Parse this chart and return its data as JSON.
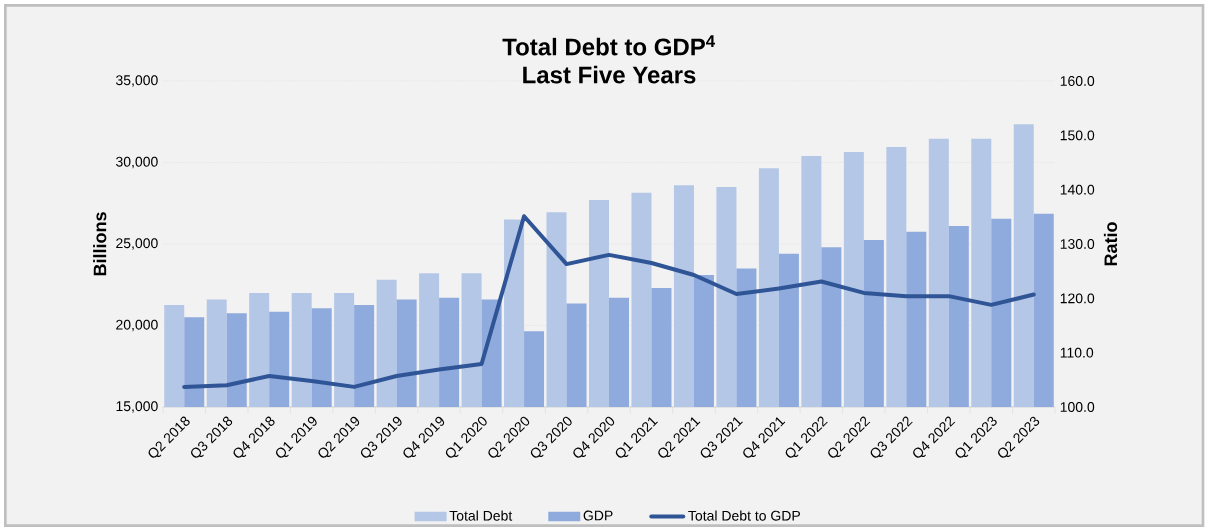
{
  "chart_data": {
    "type": "bar",
    "title": "Total Debt to GDP$^{4}$",
    "subtitle": "Last Five Years",
    "ylabel": "Billions",
    "y2label": "Ratio",
    "categories": [
      "Q2 2018",
      "Q3 2018",
      "Q4 2018",
      "Q1 2019",
      "Q2 2019",
      "Q3 2019",
      "Q4 2019",
      "Q1 2020",
      "Q2 2020",
      "Q3 2020",
      "Q4 2020",
      "Q1 2021",
      "Q2 2021",
      "Q3 2021",
      "Q4 2021",
      "Q1 2022",
      "Q2 2022",
      "Q3 2022",
      "Q4 2022",
      "Q1 2023",
      "Q2 2023"
    ],
    "series": [
      {
        "name": "Total Debt",
        "color": "#b4c7e7",
        "values": [
          21250,
          21600,
          22000,
          22000,
          22000,
          22800,
          23200,
          23200,
          26500,
          26950,
          27700,
          28150,
          28600,
          28500,
          29650,
          30400,
          30650,
          30950,
          31450,
          31450,
          32350
        ]
      },
      {
        "name": "GDP",
        "color": "#8faadc",
        "values": [
          20500,
          20750,
          20850,
          21050,
          21250,
          21600,
          21700,
          21600,
          19650,
          21350,
          21700,
          22300,
          23100,
          23500,
          24400,
          24800,
          25250,
          25750,
          26100,
          26550,
          26850
        ]
      },
      {
        "name": "Total Debt to GDP",
        "type": "line",
        "axis": "y2",
        "color": "#2f5597",
        "values": [
          103.7,
          104.0,
          105.7,
          104.8,
          103.7,
          105.7,
          106.9,
          107.9,
          135.1,
          126.3,
          128.0,
          126.5,
          124.3,
          120.8,
          121.8,
          123.1,
          121.0,
          120.4,
          120.4,
          118.8,
          120.7
        ]
      }
    ],
    "ylim": [
      15000,
      35000
    ],
    "yticks": [
      {
        "value": 15000,
        "label": "15,000"
      },
      {
        "value": 20000,
        "label": "20,000"
      },
      {
        "value": 25000,
        "label": "25,000"
      },
      {
        "value": 30000,
        "label": "30,000"
      },
      {
        "value": 35000,
        "label": "35,000"
      }
    ],
    "y2lim": [
      100,
      160
    ],
    "y2ticks": [
      {
        "value": 100,
        "label": "100.0"
      },
      {
        "value": 110,
        "label": "110.0"
      },
      {
        "value": 120,
        "label": "120.0"
      },
      {
        "value": 130,
        "label": "130.0"
      },
      {
        "value": 140,
        "label": "140.0"
      },
      {
        "value": 150,
        "label": "150.0"
      },
      {
        "value": 160,
        "label": "160.0"
      }
    ],
    "grid": "y",
    "legend": "bottom"
  }
}
